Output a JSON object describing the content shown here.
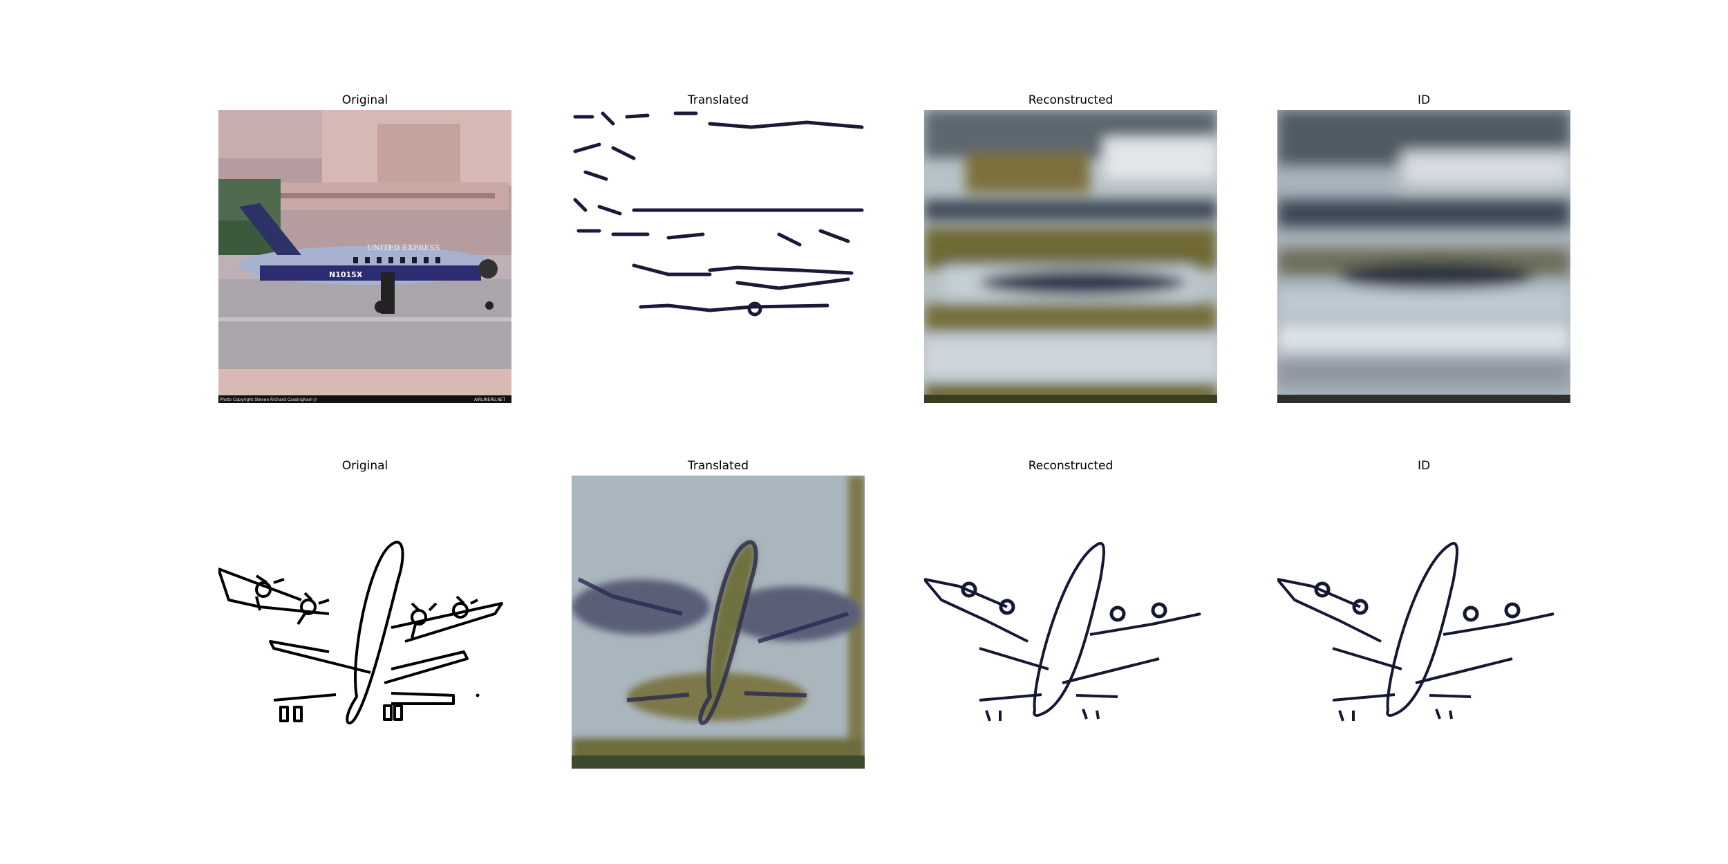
{
  "rows": [
    {
      "panels": [
        {
          "title": "Original"
        },
        {
          "title": "Translated"
        },
        {
          "title": "Reconstructed"
        },
        {
          "title": "ID"
        }
      ]
    },
    {
      "panels": [
        {
          "title": "Original"
        },
        {
          "title": "Translated"
        },
        {
          "title": "Reconstructed"
        },
        {
          "title": "ID"
        }
      ]
    }
  ],
  "photo_text": {
    "tail_number": "N1015X",
    "livery": "UNITED EXPRESS",
    "copyright": "Photo Copyright Steven Richard Cassingham Jr",
    "site": "AIRLINERS.NET"
  },
  "colors": {
    "sky_tint": "#c8c2c6",
    "building": "#b89a98",
    "fuselage": "#9aa6c6",
    "stripe": "#2a2a6e",
    "tarmac": "#a8a3a8",
    "ink": "#1a1836"
  }
}
